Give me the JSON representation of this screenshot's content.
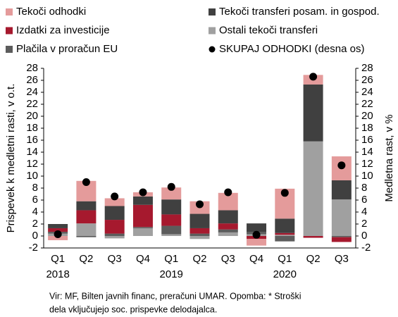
{
  "chart_data": {
    "type": "bar",
    "stacked": true,
    "categories": [
      "Q1",
      "Q2",
      "Q3",
      "Q4",
      "Q1",
      "Q2",
      "Q3",
      "Q4",
      "Q1",
      "Q2",
      "Q3"
    ],
    "categories_2": [
      "2018",
      null,
      null,
      null,
      "2019",
      null,
      null,
      null,
      "2020",
      null,
      null
    ],
    "y_label": "Prispevek k medletni rasti, v o.t.",
    "y2_label": "Medletna rast, v %",
    "ylim": [
      -2,
      28
    ],
    "yticks": [
      -2,
      0,
      2,
      4,
      6,
      8,
      10,
      12,
      14,
      16,
      18,
      20,
      22,
      24,
      26,
      28
    ],
    "y2lim": [
      -2,
      28
    ],
    "y2ticks": [
      -2,
      0,
      2,
      4,
      6,
      8,
      10,
      12,
      14,
      16,
      18,
      20,
      22,
      24,
      26,
      28
    ],
    "grid": false,
    "series": [
      {
        "name": "Tekoči odhodki",
        "color": "#e49b9b",
        "legend_slot": 0,
        "values": [
          -0.7,
          3.4,
          1.3,
          0.7,
          2.0,
          2.1,
          2.9,
          -1.1,
          5.0,
          1.6,
          4.0
        ]
      },
      {
        "name": "Tekoči transferi posam. in gospod.",
        "color": "#404040",
        "legend_slot": 1,
        "values": [
          0.7,
          1.5,
          2.3,
          1.4,
          2.5,
          2.4,
          2.2,
          1.4,
          2.4,
          9.5,
          3.2
        ]
      },
      {
        "name": "Izdatki za investicije",
        "color": "#a6192e",
        "legend_slot": 2,
        "values": [
          0.6,
          2.2,
          2.3,
          3.7,
          1.9,
          0.9,
          1.0,
          -0.5,
          0.3,
          -0.3,
          -0.8
        ]
      },
      {
        "name": "Ostali tekoči transferi",
        "color": "#a0a0a0",
        "legend_slot": 3,
        "values": [
          0.4,
          2.1,
          -0.4,
          1.3,
          0.3,
          -0.5,
          0.6,
          0.3,
          0.2,
          15.8,
          6.1
        ]
      },
      {
        "name": "Plačila v proračun EU",
        "color": "#5c5c5c",
        "legend_slot": 4,
        "values": [
          0.3,
          -0.2,
          0.4,
          0.2,
          1.4,
          0.4,
          0.5,
          0.4,
          -0.9,
          0.0,
          -0.2
        ]
      },
      {
        "name": "SKUPAJ ODHODKI (desna os)",
        "color": "#000000",
        "legend_slot": 5,
        "type": "scatter",
        "axis": "y2",
        "values": [
          0.3,
          9.0,
          6.6,
          7.3,
          8.2,
          5.3,
          7.3,
          0.2,
          7.2,
          26.6,
          11.8
        ]
      }
    ],
    "stack_order": [
      3,
      4,
      2,
      1,
      0
    ],
    "notes": [
      "Vir: MF, Bilten javnih financ, preračuni UMAR. Opomba: * Stroški",
      "dela vključujejo soc. prispevke delodajalca."
    ]
  }
}
